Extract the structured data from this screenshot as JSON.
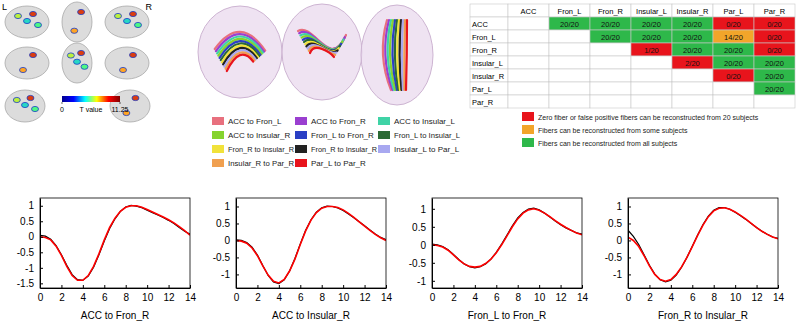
{
  "brain_panel": {
    "left_label": "L",
    "right_label": "R",
    "colorbar": {
      "label": "T value",
      "range": [
        0,
        11.25
      ],
      "ticks": [
        0,
        11.25
      ]
    }
  },
  "fiber_legend": [
    {
      "name": "ACC to Fron_L",
      "color": "#e8707e"
    },
    {
      "name": "ACC to Fron_R",
      "color": "#9a3fd0"
    },
    {
      "name": "ACC to Insular_L",
      "color": "#3fd3a6"
    },
    {
      "name": "ACC to Insular_R",
      "color": "#86d32e"
    },
    {
      "name": "Fron_L to Fron_R",
      "color": "#2a3fc4"
    },
    {
      "name": "Fron_L to Insular_L",
      "color": "#2b6a34"
    },
    {
      "name": "Fron_R to Insular_R",
      "color": "#f1e23a"
    },
    {
      "name": "Fron_R to Insular_R",
      "color": "#222222"
    },
    {
      "name": "Insular_L to Par_L",
      "color": "#a8a8f0"
    },
    {
      "name": "Insular_R to Par_R",
      "color": "#f0a050"
    },
    {
      "name": "Par_L to Par_R",
      "color": "#e8141c"
    }
  ],
  "connectivity_table": {
    "columns": [
      "ACC",
      "Fron_L",
      "Fron_R",
      "Insular_L",
      "Insular_R",
      "Par_L",
      "Par_R"
    ],
    "rows": [
      {
        "label": "ACC",
        "cells": [
          null,
          "20/20",
          "20/20",
          "20/20",
          "20/20",
          "0/20",
          "0/20"
        ],
        "colors": [
          null,
          "#2eb84a",
          "#2eb84a",
          "#2eb84a",
          "#2eb84a",
          "#e8141c",
          "#e8141c"
        ]
      },
      {
        "label": "Fron_L",
        "cells": [
          null,
          null,
          "20/20",
          "20/20",
          "20/20",
          "14/20",
          "0/20"
        ],
        "colors": [
          null,
          null,
          "#2eb84a",
          "#2eb84a",
          "#2eb84a",
          "#f2a52a",
          "#e8141c"
        ]
      },
      {
        "label": "Fron_R",
        "cells": [
          null,
          null,
          null,
          "1/20",
          "20/20",
          "20/20",
          "0/20"
        ],
        "colors": [
          null,
          null,
          null,
          "#e8141c",
          "#2eb84a",
          "#2eb84a",
          "#e8141c"
        ]
      },
      {
        "label": "Insular_L",
        "cells": [
          null,
          null,
          null,
          null,
          "2/20",
          "20/20",
          "20/20"
        ],
        "colors": [
          null,
          null,
          null,
          null,
          "#e8141c",
          "#2eb84a",
          "#2eb84a"
        ]
      },
      {
        "label": "Insular_R",
        "cells": [
          null,
          null,
          null,
          null,
          null,
          "0/20",
          "20/20"
        ],
        "colors": [
          null,
          null,
          null,
          null,
          null,
          "#e8141c",
          "#2eb84a"
        ]
      },
      {
        "label": "Par_L",
        "cells": [
          null,
          null,
          null,
          null,
          null,
          null,
          "20/20"
        ],
        "colors": [
          null,
          null,
          null,
          null,
          null,
          null,
          "#2eb84a"
        ]
      },
      {
        "label": "Par_R",
        "cells": [
          null,
          null,
          null,
          null,
          null,
          null,
          null
        ],
        "colors": [
          null,
          null,
          null,
          null,
          null,
          null,
          null
        ]
      }
    ],
    "legend": [
      {
        "text": "Zero fiber or false positive fibers can be reconstructed from 20 subjects",
        "color": "#e8141c"
      },
      {
        "text": "Fibers can be reconstructed from some subjects",
        "color": "#f2a52a"
      },
      {
        "text": "Fibers can be reconstructed from all subjects",
        "color": "#2eb84a"
      }
    ]
  },
  "chart_data": [
    {
      "type": "line",
      "x_label": "ACC to Fron_R",
      "x": [
        0,
        0.5,
        1,
        1.5,
        2,
        2.5,
        3,
        3.5,
        4,
        4.5,
        5,
        5.5,
        6,
        6.5,
        7,
        7.5,
        8,
        8.5,
        9,
        9.5,
        10,
        10.5,
        11,
        11.5,
        12,
        12.5,
        13,
        13.5,
        14
      ],
      "series": [
        {
          "color": "#000000",
          "values": [
            0.05,
            0.02,
            -0.08,
            -0.28,
            -0.58,
            -0.92,
            -1.22,
            -1.38,
            -1.4,
            -1.27,
            -0.98,
            -0.58,
            -0.14,
            0.27,
            0.58,
            0.82,
            0.96,
            1.01,
            0.99,
            0.94,
            0.86,
            0.78,
            0.7,
            0.62,
            0.53,
            0.43,
            0.3,
            0.18,
            0.08
          ]
        },
        {
          "color": "#ff0000",
          "values": [
            0,
            -0.02,
            -0.1,
            -0.3,
            -0.6,
            -0.95,
            -1.25,
            -1.4,
            -1.4,
            -1.25,
            -0.95,
            -0.55,
            -0.1,
            0.3,
            0.6,
            0.82,
            0.95,
            1.0,
            1.0,
            0.95,
            0.88,
            0.8,
            0.72,
            0.64,
            0.55,
            0.45,
            0.33,
            0.2,
            0.05
          ]
        }
      ],
      "xlim": [
        0,
        14
      ],
      "xticks": [
        0,
        2,
        4,
        6,
        8,
        10,
        12,
        14
      ],
      "ylim": [
        -1.65,
        1.25
      ],
      "yticks": [
        -1.5,
        -1,
        -0.5,
        0,
        0.5,
        1
      ],
      "grid": false
    },
    {
      "type": "line",
      "x_label": "ACC to Insular_R",
      "x": [
        0,
        0.5,
        1,
        1.5,
        2,
        2.5,
        3,
        3.5,
        4,
        4.5,
        5,
        5.5,
        6,
        6.5,
        7,
        7.5,
        8,
        8.5,
        9,
        9.5,
        10,
        10.5,
        11,
        11.5,
        12,
        12.5,
        13,
        13.5,
        14
      ],
      "series": [
        {
          "color": "#000000",
          "values": [
            0.02,
            0.0,
            -0.06,
            -0.2,
            -0.43,
            -0.74,
            -1.03,
            -1.22,
            -1.27,
            -1.16,
            -0.9,
            -0.53,
            -0.1,
            0.3,
            0.61,
            0.83,
            0.96,
            1.01,
            1.0,
            0.96,
            0.88,
            0.78,
            0.67,
            0.55,
            0.43,
            0.31,
            0.19,
            0.09,
            0.02
          ]
        },
        {
          "color": "#ff0000",
          "values": [
            0,
            -0.02,
            -0.08,
            -0.22,
            -0.45,
            -0.75,
            -1.02,
            -1.2,
            -1.25,
            -1.15,
            -0.9,
            -0.55,
            -0.12,
            0.28,
            0.6,
            0.82,
            0.95,
            1.0,
            1.0,
            0.97,
            0.9,
            0.8,
            0.68,
            0.55,
            0.42,
            0.3,
            0.18,
            0.08,
            0.0
          ]
        }
      ],
      "xlim": [
        0,
        14
      ],
      "xticks": [
        0,
        2,
        4,
        6,
        8,
        10,
        12,
        14
      ],
      "ylim": [
        -1.4,
        1.25
      ],
      "yticks": [
        -1,
        -0.5,
        0,
        0.5,
        1
      ],
      "grid": false
    },
    {
      "type": "line",
      "x_label": "Fron_L to Fron_R",
      "x": [
        0,
        0.5,
        1,
        1.5,
        2,
        2.5,
        3,
        3.5,
        4,
        4.5,
        5,
        5.5,
        6,
        6.5,
        7,
        7.5,
        8,
        8.5,
        9,
        9.5,
        10,
        10.5,
        11,
        11.5,
        12,
        12.5,
        13,
        13.5,
        14
      ],
      "series": [
        {
          "color": "#000000",
          "values": [
            0.02,
            0.0,
            -0.05,
            -0.14,
            -0.27,
            -0.41,
            -0.53,
            -0.61,
            -0.64,
            -0.61,
            -0.53,
            -0.4,
            -0.21,
            0.02,
            0.27,
            0.53,
            0.75,
            0.9,
            0.99,
            1.02,
            0.97,
            0.88,
            0.77,
            0.66,
            0.56,
            0.47,
            0.4,
            0.33,
            0.3
          ]
        },
        {
          "color": "#ff0000",
          "values": [
            0,
            -0.02,
            -0.06,
            -0.15,
            -0.28,
            -0.42,
            -0.53,
            -0.6,
            -0.62,
            -0.6,
            -0.52,
            -0.4,
            -0.22,
            0.0,
            0.25,
            0.5,
            0.72,
            0.88,
            0.97,
            1.0,
            0.96,
            0.88,
            0.78,
            0.67,
            0.57,
            0.48,
            0.4,
            0.33,
            0.28
          ]
        }
      ],
      "xlim": [
        0,
        14
      ],
      "xticks": [
        0,
        2,
        4,
        6,
        8,
        10,
        12,
        14
      ],
      "ylim": [
        -1.2,
        1.3
      ],
      "yticks": [
        -1,
        -0.5,
        0,
        0.5,
        1
      ],
      "grid": false
    },
    {
      "type": "line",
      "x_label": "Fron_R to Insular_R",
      "x": [
        0,
        0.5,
        1,
        1.5,
        2,
        2.5,
        3,
        3.5,
        4,
        4.5,
        5,
        5.5,
        6,
        6.5,
        7,
        7.5,
        8,
        8.5,
        9,
        9.5,
        10,
        10.5,
        11,
        11.5,
        12,
        12.5,
        13,
        13.5,
        14
      ],
      "series": [
        {
          "color": "#000000",
          "values": [
            0.3,
            0.12,
            -0.12,
            -0.42,
            -0.73,
            -0.99,
            -1.16,
            -1.22,
            -1.17,
            -1.02,
            -0.79,
            -0.5,
            -0.17,
            0.16,
            0.47,
            0.72,
            0.89,
            0.97,
            0.97,
            0.92,
            0.83,
            0.73,
            0.62,
            0.5,
            0.38,
            0.27,
            0.18,
            0.1,
            0.06
          ]
        },
        {
          "color": "#ff0000",
          "values": [
            0.1,
            0.0,
            -0.18,
            -0.45,
            -0.75,
            -1.0,
            -1.15,
            -1.2,
            -1.15,
            -1.0,
            -0.78,
            -0.5,
            -0.18,
            0.15,
            0.45,
            0.7,
            0.87,
            0.95,
            0.96,
            0.92,
            0.84,
            0.74,
            0.63,
            0.5,
            0.38,
            0.27,
            0.18,
            0.1,
            0.05
          ]
        }
      ],
      "xlim": [
        0,
        14
      ],
      "xticks": [
        0,
        2,
        4,
        6,
        8,
        10,
        12,
        14
      ],
      "ylim": [
        -1.4,
        1.25
      ],
      "yticks": [
        -1,
        -0.5,
        0,
        0.5,
        1
      ],
      "grid": false
    }
  ]
}
